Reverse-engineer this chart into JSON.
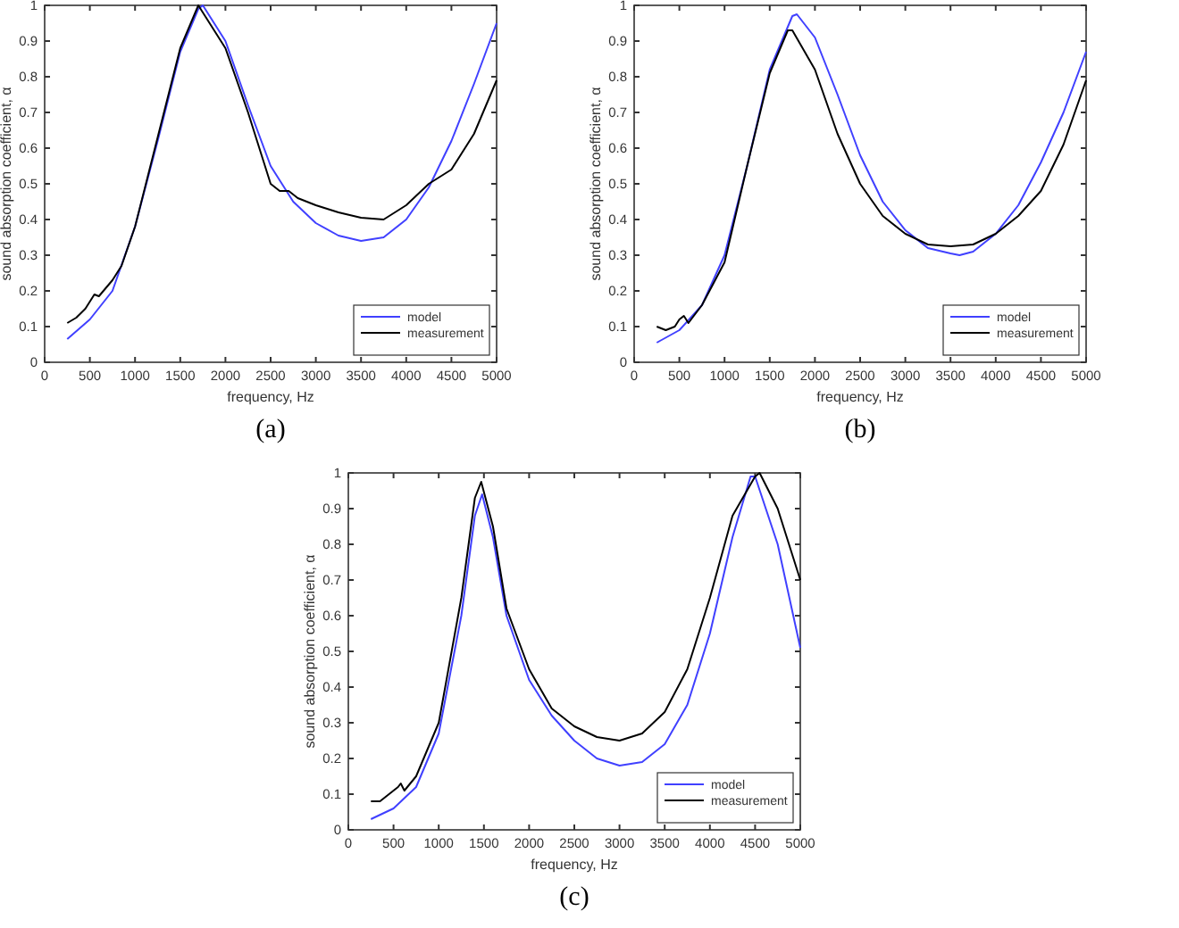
{
  "chart_data": [
    {
      "type": "line",
      "xlabel": "frequency, Hz",
      "ylabel": "sound absorption coefficient, α",
      "annotations": [
        "(a)"
      ],
      "xlim": [
        0,
        5000
      ],
      "ylim": [
        0,
        1
      ],
      "xticks": [
        0,
        500,
        1000,
        1500,
        2000,
        2500,
        3000,
        3500,
        4000,
        4500,
        5000
      ],
      "yticks": [
        0,
        0.1,
        0.2,
        0.3,
        0.4,
        0.5,
        0.6,
        0.7,
        0.8,
        0.9,
        1
      ],
      "grid": false,
      "legend": "bottom right",
      "line_style": "solid",
      "marker": "none",
      "series": [
        {
          "name": "model",
          "color": "#4040ff",
          "x": [
            250,
            500,
            750,
            1000,
            1250,
            1500,
            1700,
            1750,
            2000,
            2250,
            2500,
            2750,
            3000,
            3250,
            3500,
            3750,
            4000,
            4250,
            4500,
            4750,
            5000
          ],
          "values": [
            0.065,
            0.12,
            0.2,
            0.38,
            0.62,
            0.87,
            0.99,
            1.0,
            0.9,
            0.72,
            0.55,
            0.45,
            0.39,
            0.355,
            0.34,
            0.35,
            0.4,
            0.49,
            0.62,
            0.78,
            0.95
          ]
        },
        {
          "name": "measurement",
          "color": "#000000",
          "x": [
            250,
            350,
            450,
            500,
            550,
            600,
            650,
            750,
            850,
            1000,
            1250,
            1500,
            1700,
            2000,
            2250,
            2500,
            2600,
            2700,
            2800,
            3000,
            3250,
            3500,
            3750,
            4000,
            4250,
            4500,
            4750,
            5000
          ],
          "values": [
            0.11,
            0.125,
            0.15,
            0.17,
            0.19,
            0.185,
            0.2,
            0.23,
            0.27,
            0.38,
            0.63,
            0.88,
            1.0,
            0.88,
            0.7,
            0.5,
            0.48,
            0.48,
            0.46,
            0.44,
            0.42,
            0.405,
            0.4,
            0.44,
            0.5,
            0.54,
            0.64,
            0.79
          ]
        }
      ]
    },
    {
      "type": "line",
      "xlabel": "frequency, Hz",
      "ylabel": "sound absorption coefficient, α",
      "annotations": [
        "(b)"
      ],
      "xlim": [
        0,
        5000
      ],
      "ylim": [
        0,
        1
      ],
      "xticks": [
        0,
        500,
        1000,
        1500,
        2000,
        2500,
        3000,
        3500,
        4000,
        4500,
        5000
      ],
      "yticks": [
        0,
        0.1,
        0.2,
        0.3,
        0.4,
        0.5,
        0.6,
        0.7,
        0.8,
        0.9,
        1
      ],
      "grid": false,
      "legend": "bottom right",
      "line_style": "solid",
      "marker": "none",
      "series": [
        {
          "name": "model",
          "color": "#4040ff",
          "x": [
            250,
            500,
            750,
            1000,
            1250,
            1500,
            1750,
            1800,
            2000,
            2250,
            2500,
            2750,
            3000,
            3250,
            3500,
            3600,
            3750,
            4000,
            4250,
            4500,
            4750,
            5000
          ],
          "values": [
            0.055,
            0.09,
            0.16,
            0.3,
            0.55,
            0.82,
            0.97,
            0.975,
            0.91,
            0.75,
            0.58,
            0.45,
            0.37,
            0.32,
            0.305,
            0.3,
            0.31,
            0.36,
            0.44,
            0.56,
            0.7,
            0.87
          ]
        },
        {
          "name": "measurement",
          "color": "#000000",
          "x": [
            250,
            350,
            450,
            500,
            550,
            600,
            750,
            1000,
            1250,
            1500,
            1700,
            1750,
            2000,
            2250,
            2500,
            2750,
            3000,
            3250,
            3500,
            3750,
            4000,
            4250,
            4500,
            4750,
            5000
          ],
          "values": [
            0.1,
            0.09,
            0.1,
            0.12,
            0.13,
            0.11,
            0.16,
            0.28,
            0.55,
            0.81,
            0.93,
            0.93,
            0.82,
            0.64,
            0.5,
            0.41,
            0.36,
            0.33,
            0.325,
            0.33,
            0.36,
            0.41,
            0.48,
            0.61,
            0.79
          ]
        }
      ]
    },
    {
      "type": "line",
      "xlabel": "frequency, Hz",
      "ylabel": "sound absorption coefficient, α",
      "annotations": [
        "(c)"
      ],
      "xlim": [
        0,
        5000
      ],
      "ylim": [
        0,
        1
      ],
      "xticks": [
        0,
        500,
        1000,
        1500,
        2000,
        2500,
        3000,
        3500,
        4000,
        4500,
        5000
      ],
      "yticks": [
        0,
        0.1,
        0.2,
        0.3,
        0.4,
        0.5,
        0.6,
        0.7,
        0.8,
        0.9,
        1
      ],
      "grid": false,
      "legend": "bottom right",
      "line_style": "solid",
      "marker": "none",
      "series": [
        {
          "name": "model",
          "color": "#4040ff",
          "x": [
            250,
            500,
            750,
            1000,
            1250,
            1400,
            1480,
            1600,
            1750,
            2000,
            2250,
            2500,
            2750,
            3000,
            3250,
            3500,
            3750,
            4000,
            4250,
            4450,
            4500,
            4750,
            5000
          ],
          "values": [
            0.03,
            0.06,
            0.12,
            0.27,
            0.6,
            0.88,
            0.94,
            0.82,
            0.6,
            0.42,
            0.32,
            0.25,
            0.2,
            0.18,
            0.19,
            0.24,
            0.35,
            0.55,
            0.82,
            0.99,
            0.99,
            0.8,
            0.51
          ]
        },
        {
          "name": "measurement",
          "color": "#000000",
          "x": [
            250,
            350,
            450,
            550,
            580,
            620,
            750,
            1000,
            1250,
            1400,
            1470,
            1600,
            1750,
            2000,
            2250,
            2500,
            2750,
            3000,
            3250,
            3500,
            3750,
            4000,
            4250,
            4500,
            4550,
            4750,
            5000
          ],
          "values": [
            0.08,
            0.08,
            0.1,
            0.12,
            0.13,
            0.11,
            0.15,
            0.3,
            0.65,
            0.93,
            0.975,
            0.85,
            0.62,
            0.45,
            0.34,
            0.29,
            0.26,
            0.25,
            0.27,
            0.33,
            0.45,
            0.65,
            0.88,
            0.99,
            1.0,
            0.9,
            0.7
          ]
        }
      ]
    }
  ]
}
